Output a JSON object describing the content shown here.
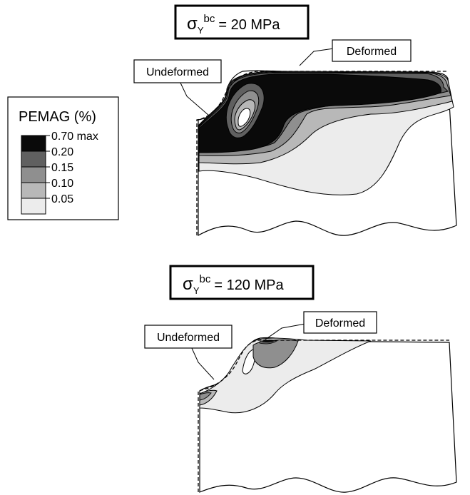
{
  "legend": {
    "title": "PEMAG (%)",
    "levels": [
      {
        "label": "0.70 max",
        "color": "#0a0a0a"
      },
      {
        "label": "0.20",
        "color": "#606060"
      },
      {
        "label": "0.15",
        "color": "#8f8f8f"
      },
      {
        "label": "0.10",
        "color": "#b8b8b8"
      },
      {
        "label": "0.05",
        "color": "#ececec"
      }
    ]
  },
  "panels": [
    {
      "title_symbol": "σ",
      "title_sub": "Y",
      "title_sup": "bc",
      "title_value": "= 20 MPa",
      "label_undeformed": "Undeformed",
      "label_deformed": "Deformed"
    },
    {
      "title_symbol": "σ",
      "title_sub": "Y",
      "title_sup": "bc",
      "title_value": "= 120 MPa",
      "label_undeformed": "Undeformed",
      "label_deformed": "Deformed"
    }
  ]
}
